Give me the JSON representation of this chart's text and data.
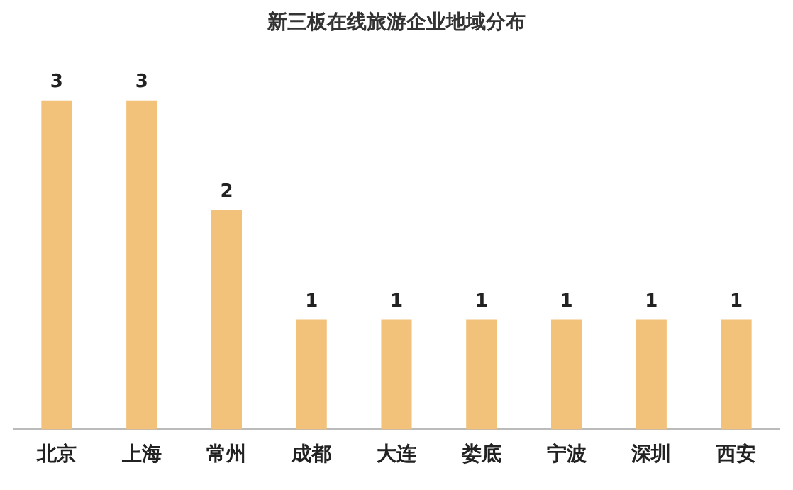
{
  "chart_data": {
    "type": "bar",
    "title": "新三板在线旅游企业地域分布",
    "categories": [
      "北京",
      "上海",
      "常州",
      "成都",
      "大连",
      "娄底",
      "宁波",
      "深圳",
      "西安"
    ],
    "values": [
      3,
      3,
      2,
      1,
      1,
      1,
      1,
      1,
      1
    ],
    "color": "#f2c27a",
    "data_labels": true,
    "grid": false,
    "legend": false
  }
}
